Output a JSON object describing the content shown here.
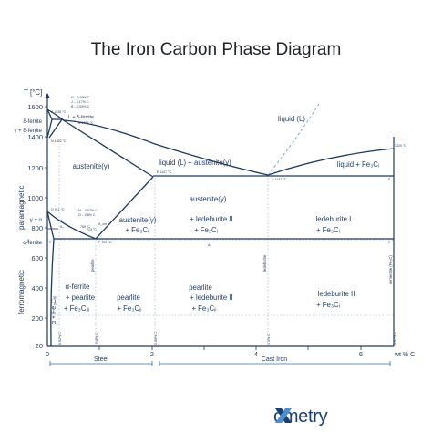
{
  "title": "The Iron Carbon Phase Diagram",
  "y_axis_label": "T [°C]",
  "x_axis_label": "wt % C",
  "y_ticks": [
    "1600",
    "1400",
    "1200",
    "1000",
    "800",
    "600",
    "400",
    "200",
    "20"
  ],
  "x_ticks": [
    "0",
    "2",
    "4",
    "6"
  ],
  "side_labels": {
    "paramagnetic": "paramagnetic",
    "ferromagnetic": "ferromagnetic"
  },
  "left_phase_labels": {
    "delta_ferrite": "δ-ferrite",
    "gamma_delta": "γ + δ-ferrite",
    "gamma_alpha": "γ + α",
    "alpha_ferrite": "α-ferrite"
  },
  "regions": {
    "liquid": "liquid (L)",
    "l_delta": "L + δ-ferrite",
    "austenite": "austenite(γ)",
    "liquid_austenite": "liquid (L) + austenite(γ)",
    "liquid_fe3c": "liquid + Fe₃Cᵢ",
    "aust_fe3c_1": "austenite(γ)",
    "aust_fe3c_2": "+ Fe₃Cᵢᵢ",
    "aust_led_1": "austenite(γ)",
    "aust_led_2": "+ ledeburite II",
    "aust_led_3": "+ Fe₃Cᵢ",
    "led1_1": "ledeburite I",
    "led1_2": "+ Fe₃Cᵢ",
    "alpha_pearlite_1": "α-ferrite",
    "alpha_pearlite_2": "+ pearlite",
    "alpha_pearlite_3": "+ Fe₃Cᵢᵢᵢ",
    "pearlite_1": "pearlite",
    "pearlite_2": "+ Fe₃Cᵢᵢ",
    "pl_1": "pearlite",
    "pl_2": "+ ledeburite II",
    "pl_3": "+ Fe₃Cᵢᵢ",
    "led2_1": "ledeburite II",
    "led2_2": "+ Fe₃Cᵢ",
    "alpha_fe3c": "α + Fe₃Cᵢᵢᵢ"
  },
  "vertical_labels": {
    "pearlite": "pearlite",
    "ledeburite": "ledeburite",
    "cementite": "cementite (Fe₃C)"
  },
  "points": {
    "A": "A 1536 °C",
    "B": "B 1493 °C",
    "H": "H – 0.09% C",
    "J": "J – 0.17% C",
    "Bc": "B – 0.53% C",
    "N": "N 1392 °C",
    "D": "1320 °C",
    "C_label": "C 1147 °C",
    "E_label": "E 1147 °C",
    "F": "F",
    "G": "G 911 °C",
    "M": "M – 0.02% C",
    "O": "O – 0.8% C",
    "S": "723 °C",
    "K": "K",
    "P": "P",
    "Q": "Q",
    "A1": "A₁",
    "A2": "A₂",
    "A3": "A₃",
    "Acm": "A_cm",
    "T769": "769 °C",
    "T723": "P 723 °C",
    "pct002": "0.02% C",
    "pct08": "0.8% C",
    "pct206": "2.06% C",
    "pct43": "4.3% C",
    "pct667": "6.67% C"
  },
  "bottom_ranges": {
    "steel": "Steel",
    "cast_iron": "Cast Iron"
  },
  "logo": "ometry"
}
